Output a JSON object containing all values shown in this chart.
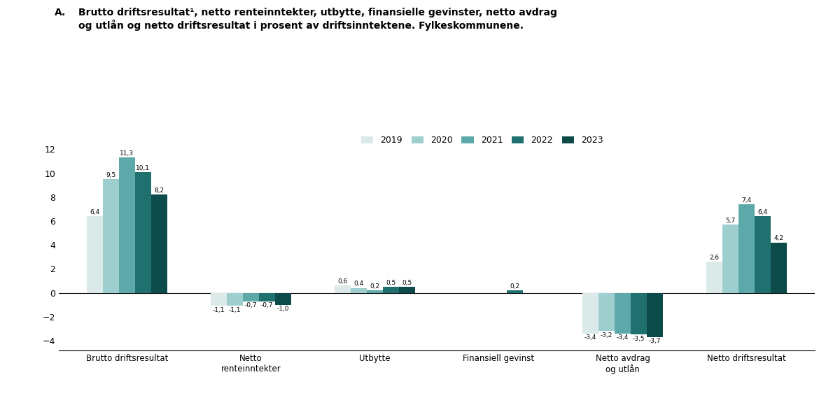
{
  "years": [
    "2019",
    "2020",
    "2021",
    "2022",
    "2023"
  ],
  "colors": [
    "#dce9e9",
    "#9ecece",
    "#5da8a8",
    "#217070",
    "#0d4a4a"
  ],
  "categories": [
    "Brutto driftsresultat",
    "Netto\nrenteinntekter",
    "Utbytte",
    "Finansiell gevinst",
    "Netto avdrag\nog utlån",
    "Netto driftsresultat"
  ],
  "data": {
    "Brutto driftsresultat": [
      6.4,
      9.5,
      11.3,
      10.1,
      8.2
    ],
    "Netto\nrenteinntekter": [
      -1.1,
      -1.1,
      -0.7,
      -0.7,
      -1.0
    ],
    "Utbytte": [
      0.6,
      0.4,
      0.2,
      0.5,
      0.5
    ],
    "Finansiell gevinst": [
      0.0,
      0.0,
      0.0,
      0.2,
      0.0
    ],
    "Netto avdrag\nog utlån": [
      -3.4,
      -3.2,
      -3.4,
      -3.5,
      -3.7
    ],
    "Netto driftsresultat": [
      2.6,
      5.7,
      7.4,
      6.4,
      4.2
    ]
  },
  "ylim": [
    -4.8,
    13.5
  ],
  "yticks": [
    -4,
    -2,
    0,
    2,
    4,
    6,
    8,
    10,
    12
  ],
  "bar_width": 0.13,
  "figsize": [
    12.0,
    5.69
  ],
  "dpi": 100,
  "title_A": "A.",
  "title_main": "Brutto driftsresultat¹, netto renteinntekter, utbytte, finansielle gevinster, netto avdrag\nog utlån og netto driftsresultat i prosent av driftsinntektene. Fylkeskommunene."
}
